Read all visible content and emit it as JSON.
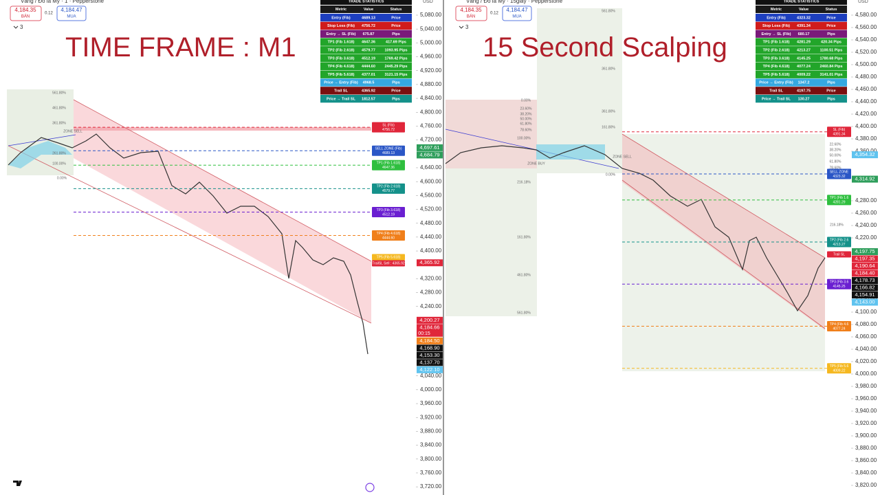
{
  "panels": [
    {
      "header": {
        "symbol": "Vàng / Đô la Mỹ · 1 · Pepperstone",
        "bid": "4,184.35",
        "bid_label": "BÁN",
        "spread": "0.12",
        "ask": "4,184.47",
        "ask_label": "MUA",
        "indicators": "3"
      },
      "overlay_title": "TIME FRAME : M1",
      "axis_unit": "USD",
      "stats": {
        "title": "TRADE STATISTICS",
        "columns": [
          "Metric",
          "Value",
          "Status"
        ],
        "rows": [
          [
            "Entry (Fib)",
            "4689.13",
            "Price"
          ],
          [
            "Stop Loss (Fib)",
            "4756.72",
            "Price"
          ],
          [
            "Entry → SL (Fib)",
            "675.87",
            "Pips"
          ],
          [
            "TP1 (Fib 1.618)",
            "4647.36",
            "417.69 Pips"
          ],
          [
            "TP2 (Fib 2.618)",
            "4579.77",
            "1093.95 Pips"
          ],
          [
            "TP3 (Fib 3.618)",
            "4512.19",
            "1769.42 Pips"
          ],
          [
            "TP4 (Fib 4.618)",
            "4444.60",
            "2445.29 Pips"
          ],
          [
            "TP5 (Fib 5.618)",
            "4377.01",
            "3121.15 Pips"
          ],
          [
            "Price → Entry (Fib)",
            "4968.5",
            "Pips"
          ],
          [
            "Trail SL",
            "4365.92",
            "Price"
          ],
          [
            "Price → Trail SL",
            "1812.57",
            "Pips"
          ]
        ]
      },
      "yticks": [
        {
          "value": 5080,
          "label": "5,080.00"
        },
        {
          "value": 5040,
          "label": "5,040.00"
        },
        {
          "value": 5000,
          "label": "5,000.00"
        },
        {
          "value": 4960,
          "label": "4,960.00"
        },
        {
          "value": 4920,
          "label": "4,920.00"
        },
        {
          "value": 4880,
          "label": "4,880.00"
        },
        {
          "value": 4840,
          "label": "4,840.00"
        },
        {
          "value": 4800,
          "label": "4,800.00"
        },
        {
          "value": 4760,
          "label": "4,760.00"
        },
        {
          "value": 4720,
          "label": "4,720.00"
        },
        {
          "value": 4640,
          "label": "4,640.00"
        },
        {
          "value": 4600,
          "label": "4,600.00"
        },
        {
          "value": 4560,
          "label": "4,560.00"
        },
        {
          "value": 4520,
          "label": "4,520.00"
        },
        {
          "value": 4480,
          "label": "4,480.00"
        },
        {
          "value": 4440,
          "label": "4,440.00"
        },
        {
          "value": 4400,
          "label": "4,400.00"
        },
        {
          "value": 4320,
          "label": "4,320.00"
        },
        {
          "value": 4280,
          "label": "4,280.00"
        },
        {
          "value": 4240,
          "label": "4,240.00"
        },
        {
          "value": 4040,
          "label": "4,040.00"
        },
        {
          "value": 4000,
          "label": "4,000.00"
        },
        {
          "value": 3960,
          "label": "3,960.00"
        },
        {
          "value": 3920,
          "label": "3,920.00"
        },
        {
          "value": 3880,
          "label": "3,880.00"
        },
        {
          "value": 3840,
          "label": "3,840.00"
        },
        {
          "value": 3800,
          "label": "3,800.00"
        },
        {
          "value": 3760,
          "label": "3,760.00"
        },
        {
          "value": 3720,
          "label": "3,720.00"
        }
      ],
      "price_tags": [
        {
          "value": 4697.61,
          "label": "4,697.61",
          "color": "#2e9e5b"
        },
        {
          "value": 4684.79,
          "label": "4,684.79",
          "color": "#2e9e5b"
        },
        {
          "value": 4365.92,
          "label": "4,365.92",
          "color": "#e0263a"
        },
        {
          "value": 4200.27,
          "label": "4,200.27",
          "color": "#e0263a"
        },
        {
          "value": 4184.66,
          "label": "4,184.66",
          "color": "#e0263a",
          "countdown": "00:15"
        },
        {
          "value": 4184.5,
          "label": "4,184.50",
          "color": "#f07f1a"
        },
        {
          "value": 4168.9,
          "label": "4,168.90",
          "color": "#111111"
        },
        {
          "value": 4153.3,
          "label": "4,153.30",
          "color": "#111111"
        },
        {
          "value": 4137.7,
          "label": "4,137.70",
          "color": "#111111"
        },
        {
          "value": 4122.1,
          "label": "4,122.10",
          "color": "#5fc3ef"
        }
      ],
      "levels": [
        {
          "name": "SL (Fib)",
          "value": 4756.72,
          "color": "#e0263a"
        },
        {
          "name": "SELL ZONE (Fib)",
          "value": 4689.13,
          "color": "#2a56c6"
        },
        {
          "name": "TP1 (Fib 1.618)",
          "value": 4647.36,
          "color": "#2fbf3f"
        },
        {
          "name": "TP2 (Fib 2.618)",
          "value": 4579.77,
          "color": "#14918a"
        },
        {
          "name": "TP3 (Fib 3.618)",
          "value": 4512.19,
          "color": "#6a1fd1"
        },
        {
          "name": "TP4 (Fib 4.618)",
          "value": {
            "value": 4444.6,
            "label": "4444.60"
          },
          "color": "#f07f1a"
        },
        {
          "name": "TP5 (Fib 5.618)",
          "color": "#f5b820"
        },
        {
          "name": "TrailSL Sell : 4365.92",
          "color": "#e0263a"
        }
      ],
      "fib_labels": [
        "561.80%",
        "461.80%",
        "361.80%",
        "ZONE SELL",
        "261.80%",
        "100.00%",
        "0.00%"
      ]
    },
    {
      "header": {
        "symbol": "Vàng / Đô la Mỹ · 15giây · Pepperstone",
        "bid": "4,184.35",
        "bid_label": "BÁN",
        "spread": "0.12",
        "ask": "4,184.47",
        "ask_label": "MUA",
        "indicators": "3"
      },
      "overlay_title": "15 Second Scalping",
      "axis_unit": "USD",
      "stats": {
        "title": "TRADE STATISTICS",
        "columns": [
          "Metric",
          "Value",
          "Status"
        ],
        "rows": [
          [
            "Entry (Fib)",
            "4323.32",
            "Price"
          ],
          [
            "Stop Loss (Fib)",
            "4391.34",
            "Price"
          ],
          [
            "Entry → SL (Fib)",
            "680.17",
            "Pips"
          ],
          [
            "TP1 (Fib 1.618)",
            "4281.29",
            "420.34 Pips"
          ],
          [
            "TP2 (Fib 2.618)",
            "4213.27",
            "1100.51 Pips"
          ],
          [
            "TP3 (Fib 3.618)",
            "4145.25",
            "1780.68 Pips"
          ],
          [
            "TP4 (Fib 4.618)",
            "4077.24",
            "2460.84 Pips"
          ],
          [
            "TP5 (Fib 5.618)",
            "4009.22",
            "3141.01 Pips"
          ],
          [
            "Price → Entry (Fib)",
            "1347.2",
            "Pips"
          ],
          [
            "Trail SL",
            "4197.75",
            "Price"
          ],
          [
            "Price → Trail SL",
            "130.27",
            "Pips"
          ]
        ]
      },
      "yticks": [
        {
          "value": 4580,
          "label": "4,580.00"
        },
        {
          "value": 4560,
          "label": "4,560.00"
        },
        {
          "value": 4540,
          "label": "4,540.00"
        },
        {
          "value": 4520,
          "label": "4,520.00"
        },
        {
          "value": 4500,
          "label": "4,500.00"
        },
        {
          "value": 4480,
          "label": "4,480.00"
        },
        {
          "value": 4460,
          "label": "4,460.00"
        },
        {
          "value": 4440,
          "label": "4,440.00"
        },
        {
          "value": 4420,
          "label": "4,420.00"
        },
        {
          "value": 4400,
          "label": "4,400.00"
        },
        {
          "value": 4380,
          "label": "4,380.00"
        },
        {
          "value": 4360,
          "label": "4,360.00"
        },
        {
          "value": 4280,
          "label": "4,280.00"
        },
        {
          "value": 4260,
          "label": "4,260.00"
        },
        {
          "value": 4240,
          "label": "4,240.00"
        },
        {
          "value": 4220,
          "label": "4,220.00"
        },
        {
          "value": 4120,
          "label": "4,120.00"
        },
        {
          "value": 4100,
          "label": "4,100.00"
        },
        {
          "value": 4080,
          "label": "4,080.00"
        },
        {
          "value": 4060,
          "label": "4,060.00"
        },
        {
          "value": 4040,
          "label": "4,040.00"
        },
        {
          "value": 4020,
          "label": "4,020.00"
        },
        {
          "value": 4000,
          "label": "4,000.00"
        },
        {
          "value": 3980,
          "label": "3,980.00"
        },
        {
          "value": 3960,
          "label": "3,960.00"
        },
        {
          "value": 3940,
          "label": "3,940.00"
        },
        {
          "value": 3920,
          "label": "3,920.00"
        },
        {
          "value": 3900,
          "label": "3,900.00"
        },
        {
          "value": 3880,
          "label": "3,880.00"
        },
        {
          "value": 3860,
          "label": "3,860.00"
        },
        {
          "value": 3840,
          "label": "3,840.00"
        },
        {
          "value": 3820,
          "label": "3,820.00"
        }
      ],
      "price_tags": [
        {
          "value": 4354.32,
          "label": "4,354.32",
          "color": "#5fc3ef"
        },
        {
          "value": 4314.92,
          "label": "4,314.92",
          "color": "#2e9e5b"
        },
        {
          "value": 4197.75,
          "label": "4,197.75",
          "color": "#2e9e5b"
        },
        {
          "value": 4197.35,
          "label": "4,197.35",
          "color": "#e0263a"
        },
        {
          "value": 4190.64,
          "label": "4,190.64",
          "color": "#e0263a"
        },
        {
          "value": 4184.4,
          "label": "4,184.40",
          "color": "#e0263a"
        },
        {
          "value": 4178.73,
          "label": "4,178.73",
          "color": "#111111"
        },
        {
          "value": 4166.82,
          "label": "4,166.82",
          "color": "#111111"
        },
        {
          "value": 4154.91,
          "label": "4,154.91",
          "color": "#111111"
        },
        {
          "value": 4143,
          "label": "4,143.00",
          "color": "#5fc3ef"
        }
      ],
      "levels": [
        {
          "name": "SL (Fib)",
          "value": 4391.34,
          "color": "#e0263a"
        },
        {
          "name": "SELL ZONE",
          "value": 4323.32,
          "color": "#2a56c6"
        },
        {
          "name": "TP1 (Fib 1.6",
          "value": 4281.29,
          "color": "#2fbf3f"
        },
        {
          "name": "TP2 (Fib 2.6",
          "value": 4213.27,
          "color": "#14918a"
        },
        {
          "name": "Trail SL",
          "color": "#e0263a"
        },
        {
          "name": "TP3 (Fib 3.6",
          "value": 4145.25,
          "color": "#6a1fd1"
        },
        {
          "name": "TP4 (Fib 4.6",
          "value": 4077.24,
          "color": "#f07f1a"
        },
        {
          "name": "TP5 (Fib 5.6",
          "value": 4009.22,
          "color": "#f5b820"
        }
      ],
      "fib_labels": [
        "561.80%",
        "0.00%",
        "23.60%",
        "38.20%",
        "50.00%",
        "61.80%",
        "78.60%",
        "100.00%",
        "161.80%",
        "ZONE BUY",
        "216.18%",
        "361.80%",
        "461.80%",
        "561.80%",
        "361.80%",
        "161.80%",
        "ZONE SELL",
        "0.00%",
        "216.18%",
        "22.60%",
        "38.20%",
        "50.00%",
        "61.80%",
        "78.60%"
      ]
    }
  ]
}
